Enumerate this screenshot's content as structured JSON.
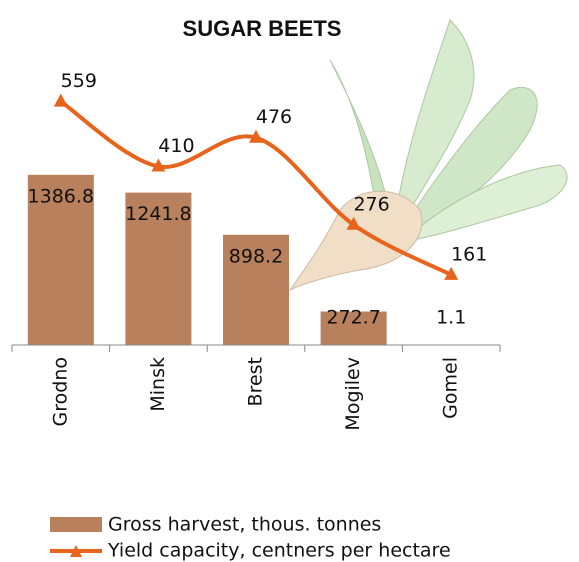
{
  "chart_data": {
    "type": "bar_line",
    "title": "SUGAR BEETS",
    "categories": [
      "Grodno",
      "Minsk",
      "Brest",
      "Mogilev",
      "Gomel"
    ],
    "series": [
      {
        "name": "Gross harvest, thous. tonnes",
        "type": "bar",
        "color": "#b8805c",
        "values": [
          1386.8,
          1241.8,
          898.2,
          272.7,
          1.1
        ]
      },
      {
        "name": "Yield capacity, centners per hectare",
        "type": "line",
        "axis": "y2",
        "color": "#e8641c",
        "values": [
          559,
          410,
          476,
          276,
          161
        ]
      }
    ],
    "ylim": [
      0,
      2200
    ],
    "y2lim": [
      0,
      620
    ]
  }
}
